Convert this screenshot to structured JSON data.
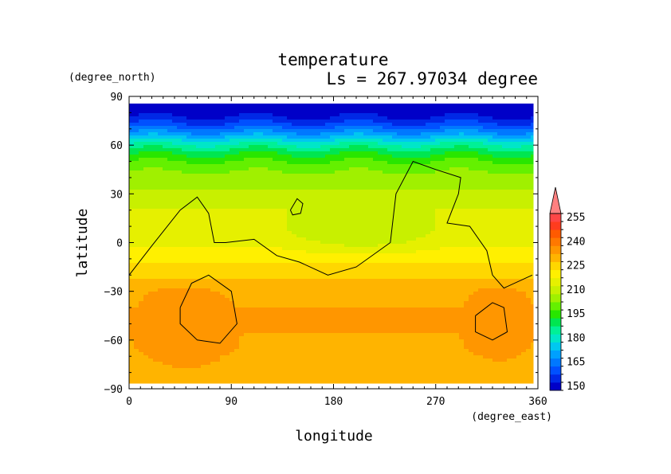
{
  "chart_data": {
    "type": "heatmap",
    "title": "temperature",
    "subtitle": "Ls = 267.97034 degree",
    "xlabel": "longitude",
    "ylabel": "latitude",
    "x_units": "(degree_east)",
    "y_units": "(degree_north)",
    "xlim": [
      0,
      360
    ],
    "ylim": [
      -90,
      90
    ],
    "x_ticks": [
      "0",
      "90",
      "180",
      "270",
      "360"
    ],
    "y_ticks": [
      "90",
      "60",
      "30",
      "0",
      "−30",
      "−60",
      "−90"
    ],
    "colorbar": {
      "levels": [
        150,
        155,
        160,
        165,
        170,
        175,
        180,
        185,
        190,
        195,
        200,
        205,
        210,
        215,
        220,
        225,
        230,
        235,
        240,
        245,
        250,
        255,
        260
      ],
      "tick_labels": [
        "255",
        "240",
        "225",
        "210",
        "195",
        "180",
        "165",
        "150"
      ],
      "colors": [
        "#0000c8",
        "#0028e6",
        "#0050ff",
        "#0078ff",
        "#00a0ff",
        "#00c8f0",
        "#00e6c8",
        "#00f096",
        "#00e650",
        "#28e600",
        "#64f000",
        "#a0f000",
        "#c8f000",
        "#e6f000",
        "#fff000",
        "#ffd700",
        "#ffb400",
        "#ff9600",
        "#ff7800",
        "#ff5a00",
        "#ff3c1e",
        "#ff4646",
        "#ff8080"
      ]
    },
    "profile_lat": [
      85,
      80,
      75,
      70,
      65,
      60,
      55,
      50,
      45,
      40,
      35,
      30,
      25,
      20,
      15,
      10,
      5,
      0,
      -5,
      -10,
      -15,
      -20,
      -25,
      -30,
      -35,
      -40,
      -45,
      -50,
      -55,
      -60,
      -65,
      -70,
      -75,
      -80,
      -85
    ],
    "profile_temp": [
      150,
      152,
      158,
      166,
      176,
      186,
      194,
      200,
      204,
      207,
      209,
      211,
      213,
      215,
      216,
      217,
      218,
      219,
      221,
      224,
      227,
      229,
      231,
      233,
      234,
      235,
      235,
      235,
      235,
      234,
      233,
      232,
      232,
      231,
      230
    ],
    "warm_regions": [
      {
        "lon_range": [
          0,
          100
        ],
        "lat_range": [
          -80,
          -25
        ],
        "value": 238
      },
      {
        "lon_range": [
          290,
          360
        ],
        "lat_range": [
          -75,
          -25
        ],
        "value": 238
      }
    ],
    "cool_regions": [
      {
        "lon_range": [
          110,
          300
        ],
        "lat_range": [
          -10,
          25
        ],
        "value": 213
      }
    ],
    "topography_contours": [
      {
        "name": "northern-continent",
        "points": [
          [
            0,
            -20
          ],
          [
            20,
            -2
          ],
          [
            45,
            20
          ],
          [
            60,
            28
          ],
          [
            70,
            18
          ],
          [
            75,
            0
          ],
          [
            85,
            0
          ],
          [
            110,
            2
          ],
          [
            130,
            -8
          ],
          [
            150,
            -12
          ],
          [
            175,
            -20
          ],
          [
            200,
            -15
          ],
          [
            230,
            0
          ],
          [
            235,
            30
          ],
          [
            250,
            50
          ],
          [
            270,
            45
          ],
          [
            292,
            40
          ],
          [
            290,
            30
          ],
          [
            280,
            12
          ],
          [
            300,
            10
          ],
          [
            315,
            -5
          ],
          [
            320,
            -20
          ],
          [
            330,
            -28
          ],
          [
            355,
            -20
          ]
        ]
      },
      {
        "name": "small-island",
        "points": [
          [
            142,
            20
          ],
          [
            148,
            27
          ],
          [
            153,
            24
          ],
          [
            151,
            18
          ],
          [
            144,
            17
          ],
          [
            142,
            20
          ]
        ]
      },
      {
        "name": "southern-basin-west",
        "points": [
          [
            45,
            -40
          ],
          [
            55,
            -25
          ],
          [
            70,
            -20
          ],
          [
            90,
            -30
          ],
          [
            95,
            -50
          ],
          [
            80,
            -62
          ],
          [
            60,
            -60
          ],
          [
            45,
            -50
          ],
          [
            45,
            -40
          ]
        ]
      },
      {
        "name": "southern-basin-east",
        "points": [
          [
            305,
            -45
          ],
          [
            320,
            -37
          ],
          [
            330,
            -40
          ],
          [
            333,
            -55
          ],
          [
            320,
            -60
          ],
          [
            305,
            -55
          ],
          [
            305,
            -45
          ]
        ]
      }
    ]
  }
}
